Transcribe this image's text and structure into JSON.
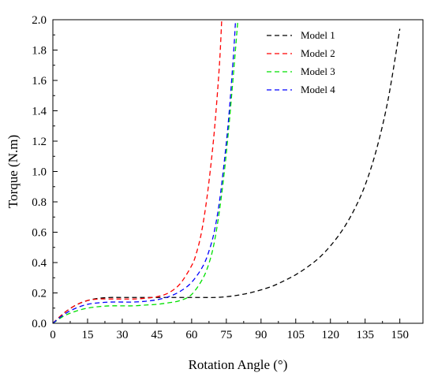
{
  "chart_data": {
    "type": "line",
    "xlabel": "Rotation Angle (°)",
    "ylabel": "Torque (N.m)",
    "xlim": [
      0,
      160
    ],
    "ylim": [
      0,
      2.0
    ],
    "xticks": [
      0,
      15,
      30,
      45,
      60,
      75,
      90,
      105,
      120,
      135,
      150
    ],
    "yticks": [
      0.0,
      0.2,
      0.4,
      0.6,
      0.8,
      1.0,
      1.2,
      1.4,
      1.6,
      1.8,
      2.0
    ],
    "xtick_labels": [
      "0",
      "15",
      "30",
      "45",
      "60",
      "75",
      "90",
      "105",
      "120",
      "135",
      "150"
    ],
    "ytick_labels": [
      "0.0",
      "0.2",
      "0.4",
      "0.6",
      "0.8",
      "1.0",
      "1.2",
      "1.4",
      "1.6",
      "1.8",
      "2.0"
    ],
    "grid": false,
    "legend_position": "top-right",
    "line_style": "dashed",
    "series": [
      {
        "name": "Model 1",
        "color": "#000000",
        "x": [
          0,
          5,
          10,
          15,
          20,
          25,
          30,
          35,
          40,
          45,
          50,
          55,
          60,
          65,
          70,
          75,
          80,
          85,
          90,
          95,
          100,
          105,
          110,
          115,
          120,
          125,
          130,
          135,
          140,
          145,
          150
        ],
        "y": [
          0,
          0.07,
          0.12,
          0.15,
          0.165,
          0.17,
          0.17,
          0.17,
          0.17,
          0.17,
          0.17,
          0.17,
          0.17,
          0.17,
          0.17,
          0.175,
          0.185,
          0.2,
          0.22,
          0.245,
          0.28,
          0.32,
          0.37,
          0.43,
          0.51,
          0.61,
          0.74,
          0.91,
          1.15,
          1.48,
          1.94
        ]
      },
      {
        "name": "Model 2",
        "color": "#ff0000",
        "x": [
          0,
          5,
          10,
          15,
          20,
          25,
          30,
          35,
          40,
          45,
          50,
          55,
          60,
          62,
          64,
          66,
          68,
          70,
          72,
          73
        ],
        "y": [
          0,
          0.07,
          0.12,
          0.15,
          0.16,
          0.16,
          0.16,
          0.16,
          0.165,
          0.175,
          0.2,
          0.26,
          0.38,
          0.46,
          0.58,
          0.76,
          1.0,
          1.3,
          1.7,
          2.0
        ]
      },
      {
        "name": "Model 3",
        "color": "#00e000",
        "x": [
          0,
          5,
          10,
          15,
          20,
          25,
          30,
          35,
          40,
          45,
          50,
          55,
          60,
          65,
          68,
          70,
          72,
          74,
          76,
          78,
          80
        ],
        "y": [
          0,
          0.05,
          0.08,
          0.1,
          0.11,
          0.115,
          0.115,
          0.115,
          0.12,
          0.125,
          0.135,
          0.15,
          0.19,
          0.3,
          0.42,
          0.55,
          0.74,
          0.98,
          1.28,
          1.63,
          2.0
        ]
      },
      {
        "name": "Model 4",
        "color": "#0000ff",
        "x": [
          0,
          5,
          10,
          15,
          20,
          25,
          30,
          35,
          40,
          45,
          50,
          55,
          60,
          65,
          68,
          70,
          72,
          74,
          76,
          78,
          79
        ],
        "y": [
          0,
          0.06,
          0.1,
          0.125,
          0.135,
          0.14,
          0.14,
          0.14,
          0.145,
          0.155,
          0.175,
          0.21,
          0.27,
          0.38,
          0.5,
          0.62,
          0.8,
          1.05,
          1.35,
          1.75,
          2.0
        ]
      }
    ]
  }
}
